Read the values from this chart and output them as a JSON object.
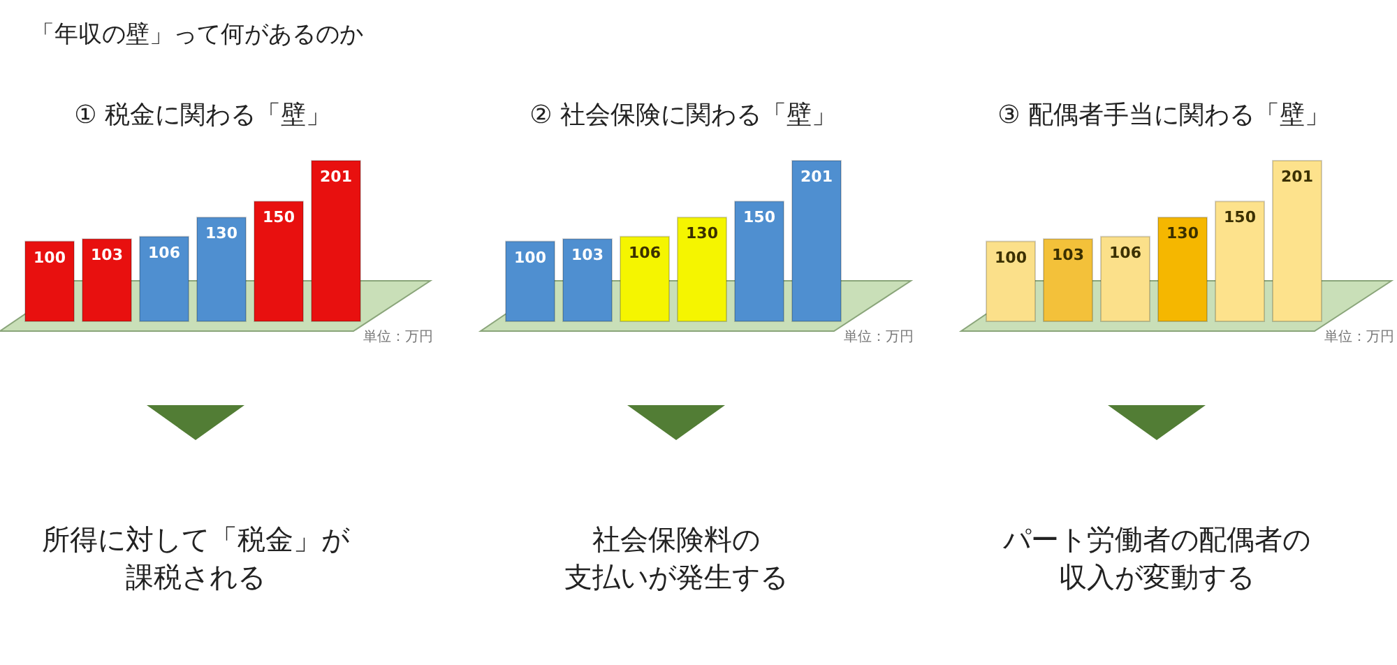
{
  "chart_data": [
    {
      "type": "other",
      "title": "「年収の壁」って何があるのか"
    },
    {
      "type": "bar",
      "title": "① 税金に関わる「壁」",
      "categories": [
        null,
        null,
        null,
        null,
        null,
        null
      ],
      "values": [
        100,
        103,
        106,
        130,
        150,
        201
      ],
      "colors": [
        "#e8100f",
        "#e8100f",
        "#4f8fd0",
        "#4f8fd0",
        "#e8100f",
        "#e8100f"
      ],
      "data_labels": true,
      "annotations": [
        "単位：万円",
        "所得に対して「税金」が",
        "課税される"
      ]
    },
    {
      "type": "bar",
      "title": "② 社会保険に関わる「壁」",
      "categories": [
        null,
        null,
        null,
        null,
        null,
        null
      ],
      "values": [
        100,
        103,
        106,
        130,
        150,
        201
      ],
      "colors": [
        "#4f8fd0",
        "#4f8fd0",
        "#f5f500",
        "#f5f500",
        "#4f8fd0",
        "#4f8fd0"
      ],
      "data_labels": true,
      "annotations": [
        "単位：万円",
        "社会保険料の",
        "支払いが発生する"
      ]
    },
    {
      "type": "bar",
      "title": "③ 配偶者手当に関わる「壁」",
      "categories": [
        null,
        null,
        null,
        null,
        null,
        null
      ],
      "values": [
        100,
        103,
        106,
        130,
        150,
        201
      ],
      "colors": [
        "#fbe08a",
        "#f3c13a",
        "#fbe08a",
        "#f5b700",
        "#fde28c",
        "#fde28c"
      ],
      "data_labels": true,
      "annotations": [
        "単位：万円",
        "パート労働者の配偶者の",
        "収入が変動する"
      ]
    }
  ]
}
